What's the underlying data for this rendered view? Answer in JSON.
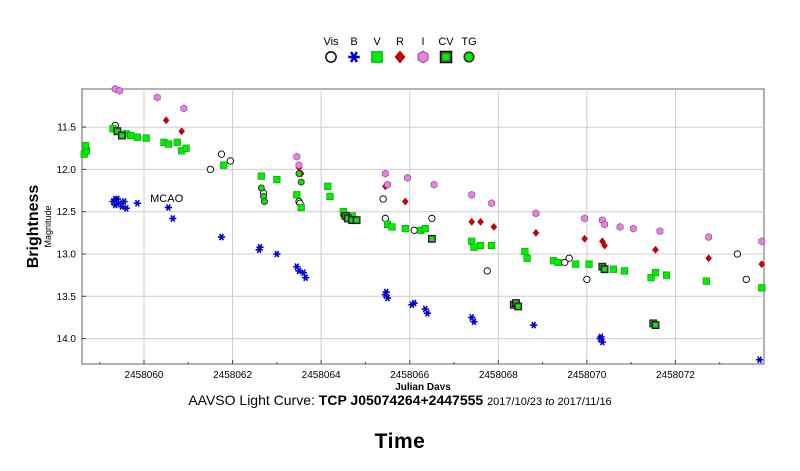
{
  "caption": {
    "prefix": "AAVSO Light Curve:",
    "target": "TCP J05074264+2447555",
    "start": "2017/10/23",
    "to": "to",
    "end": "2017/11/16"
  },
  "footer_title": "Time",
  "chart_data": {
    "type": "scatter",
    "title": "AAVSO Light Curve: TCP J05074264+2447555",
    "xlabel": "Julian Days",
    "ylabel": "Brightness",
    "ylabel_sub": "Magnitude",
    "xlim": [
      2458058.6,
      2458074.0
    ],
    "ylim": [
      11.05,
      14.3
    ],
    "y_inverted": true,
    "grid": true,
    "legend_position": "top-center",
    "x_ticks": [
      {
        "value": 2458060,
        "label": "2458060"
      },
      {
        "value": 2458062,
        "label": "2458062"
      },
      {
        "value": 2458064,
        "label": "2458064"
      },
      {
        "value": 2458066,
        "label": "2458066"
      },
      {
        "value": 2458068,
        "label": "2458068"
      },
      {
        "value": 2458070,
        "label": "2458070"
      },
      {
        "value": 2458072,
        "label": "2458072"
      }
    ],
    "y_ticks": [
      {
        "value": 11.5,
        "label": "11.5"
      },
      {
        "value": 12.0,
        "label": "12.0"
      },
      {
        "value": 12.5,
        "label": "12.5"
      },
      {
        "value": 13.0,
        "label": "13.0"
      },
      {
        "value": 13.5,
        "label": "13.5"
      },
      {
        "value": 14.0,
        "label": "14.0"
      }
    ],
    "annotations": [
      {
        "text": "MCAO",
        "x": 2458060.5,
        "y": 12.34
      }
    ],
    "series": [
      {
        "name": "Vis",
        "marker": "circle",
        "color": "#ffffff",
        "stroke": "#000000",
        "points": [
          [
            2458059.35,
            11.48
          ],
          [
            2458061.5,
            12.0
          ],
          [
            2458061.75,
            11.82
          ],
          [
            2458061.95,
            11.9
          ],
          [
            2458062.7,
            12.28
          ],
          [
            2458063.5,
            12.38
          ],
          [
            2458063.52,
            12.4
          ],
          [
            2458065.4,
            12.35
          ],
          [
            2458065.45,
            12.58
          ],
          [
            2458066.1,
            12.72
          ],
          [
            2458066.5,
            12.58
          ],
          [
            2458067.75,
            13.2
          ],
          [
            2458069.5,
            13.1
          ],
          [
            2458069.6,
            13.05
          ],
          [
            2458070.0,
            13.3
          ],
          [
            2458073.4,
            13.0
          ],
          [
            2458073.6,
            13.3
          ]
        ]
      },
      {
        "name": "B",
        "marker": "star",
        "color": "#0000cc",
        "points": [
          [
            2458059.3,
            12.38
          ],
          [
            2458059.35,
            12.42
          ],
          [
            2458059.4,
            12.35
          ],
          [
            2458059.45,
            12.4
          ],
          [
            2458059.5,
            12.44
          ],
          [
            2458059.55,
            12.38
          ],
          [
            2458059.6,
            12.46
          ],
          [
            2458059.35,
            12.35
          ],
          [
            2458059.85,
            12.4
          ],
          [
            2458060.55,
            12.45
          ],
          [
            2458060.65,
            12.58
          ],
          [
            2458061.75,
            12.8
          ],
          [
            2458062.6,
            12.95
          ],
          [
            2458062.62,
            12.92
          ],
          [
            2458063.0,
            13.0
          ],
          [
            2458063.45,
            13.15
          ],
          [
            2458063.5,
            13.2
          ],
          [
            2458063.6,
            13.22
          ],
          [
            2458063.65,
            13.28
          ],
          [
            2458065.45,
            13.48
          ],
          [
            2458065.5,
            13.52
          ],
          [
            2458065.47,
            13.45
          ],
          [
            2458066.05,
            13.6
          ],
          [
            2458066.1,
            13.58
          ],
          [
            2458066.35,
            13.65
          ],
          [
            2458066.4,
            13.7
          ],
          [
            2458067.4,
            13.75
          ],
          [
            2458067.45,
            13.8
          ],
          [
            2458068.8,
            13.84
          ],
          [
            2458070.3,
            14.0
          ],
          [
            2458070.35,
            14.04
          ],
          [
            2458070.32,
            13.98
          ],
          [
            2458073.9,
            14.25
          ]
        ]
      },
      {
        "name": "V",
        "marker": "square",
        "color": "#00ee00",
        "points": [
          [
            2458058.65,
            11.82
          ],
          [
            2458058.7,
            11.78
          ],
          [
            2458058.68,
            11.72
          ],
          [
            2458059.3,
            11.52
          ],
          [
            2458059.4,
            11.55
          ],
          [
            2458059.5,
            11.6
          ],
          [
            2458059.6,
            11.58
          ],
          [
            2458059.7,
            11.6
          ],
          [
            2458059.85,
            11.62
          ],
          [
            2458060.05,
            11.63
          ],
          [
            2458060.45,
            11.68
          ],
          [
            2458060.55,
            11.7
          ],
          [
            2458060.75,
            11.68
          ],
          [
            2458060.85,
            11.78
          ],
          [
            2458060.95,
            11.75
          ],
          [
            2458061.8,
            11.95
          ],
          [
            2458062.65,
            12.08
          ],
          [
            2458063.0,
            12.12
          ],
          [
            2458063.45,
            12.3
          ],
          [
            2458063.55,
            12.45
          ],
          [
            2458064.15,
            12.2
          ],
          [
            2458064.2,
            12.32
          ],
          [
            2458064.5,
            12.5
          ],
          [
            2458064.7,
            12.55
          ],
          [
            2458065.5,
            12.65
          ],
          [
            2458065.6,
            12.68
          ],
          [
            2458065.9,
            12.7
          ],
          [
            2458066.25,
            12.72
          ],
          [
            2458066.35,
            12.7
          ],
          [
            2458066.5,
            12.82
          ],
          [
            2458067.4,
            12.85
          ],
          [
            2458067.45,
            12.92
          ],
          [
            2458067.6,
            12.9
          ],
          [
            2458067.85,
            12.9
          ],
          [
            2458068.6,
            12.97
          ],
          [
            2458068.65,
            13.05
          ],
          [
            2458069.25,
            13.08
          ],
          [
            2458069.35,
            13.1
          ],
          [
            2458069.75,
            13.12
          ],
          [
            2458070.05,
            13.12
          ],
          [
            2458070.35,
            13.15
          ],
          [
            2458070.6,
            13.18
          ],
          [
            2458070.85,
            13.2
          ],
          [
            2458071.45,
            13.28
          ],
          [
            2458071.55,
            13.22
          ],
          [
            2458071.8,
            13.25
          ],
          [
            2458072.7,
            13.32
          ],
          [
            2458073.95,
            13.4
          ]
        ]
      },
      {
        "name": "R",
        "marker": "diamond",
        "color": "#cc0000",
        "points": [
          [
            2458060.5,
            11.42
          ],
          [
            2458060.85,
            11.55
          ],
          [
            2458063.5,
            11.98
          ],
          [
            2458063.55,
            12.05
          ],
          [
            2458064.5,
            12.55
          ],
          [
            2458065.45,
            12.2
          ],
          [
            2458065.9,
            12.38
          ],
          [
            2458067.4,
            12.62
          ],
          [
            2458067.6,
            12.62
          ],
          [
            2458067.9,
            12.68
          ],
          [
            2458068.85,
            12.75
          ],
          [
            2458069.95,
            12.82
          ],
          [
            2458070.35,
            12.85
          ],
          [
            2458070.4,
            12.9
          ],
          [
            2458071.55,
            12.95
          ],
          [
            2458072.75,
            13.05
          ],
          [
            2458073.95,
            13.12
          ]
        ]
      },
      {
        "name": "I",
        "marker": "hexagon",
        "color": "#e882e0",
        "points": [
          [
            2458059.35,
            11.05
          ],
          [
            2458059.45,
            11.07
          ],
          [
            2458060.3,
            11.15
          ],
          [
            2458060.9,
            11.28
          ],
          [
            2458063.45,
            11.85
          ],
          [
            2458063.5,
            11.95
          ],
          [
            2458065.45,
            12.05
          ],
          [
            2458065.5,
            12.18
          ],
          [
            2458065.95,
            12.1
          ],
          [
            2458066.55,
            12.18
          ],
          [
            2458067.4,
            12.3
          ],
          [
            2458067.85,
            12.4
          ],
          [
            2458068.85,
            12.52
          ],
          [
            2458069.95,
            12.58
          ],
          [
            2458070.35,
            12.6
          ],
          [
            2458070.4,
            12.65
          ],
          [
            2458070.75,
            12.68
          ],
          [
            2458071.05,
            12.7
          ],
          [
            2458071.65,
            12.73
          ],
          [
            2458072.75,
            12.8
          ],
          [
            2458073.95,
            12.85
          ]
        ]
      },
      {
        "name": "CV",
        "marker": "square-cv",
        "color": "#00ee00",
        "stroke": "#006600",
        "points": [
          [
            2458059.4,
            11.55
          ],
          [
            2458059.5,
            11.6
          ],
          [
            2458064.55,
            12.55
          ],
          [
            2458064.6,
            12.58
          ],
          [
            2458064.7,
            12.6
          ],
          [
            2458064.8,
            12.6
          ],
          [
            2458066.5,
            12.82
          ],
          [
            2458068.35,
            13.6
          ],
          [
            2458068.4,
            13.58
          ],
          [
            2458068.45,
            13.62
          ],
          [
            2458070.35,
            13.15
          ],
          [
            2458070.4,
            13.18
          ],
          [
            2458071.5,
            13.82
          ],
          [
            2458071.55,
            13.84
          ]
        ]
      },
      {
        "name": "TG",
        "marker": "circle-tg",
        "color": "#00ee00",
        "stroke": "#006600",
        "points": [
          [
            2458062.65,
            12.22
          ],
          [
            2458062.7,
            12.32
          ],
          [
            2458062.72,
            12.38
          ],
          [
            2458063.5,
            12.05
          ],
          [
            2458063.55,
            12.15
          ]
        ]
      }
    ]
  }
}
